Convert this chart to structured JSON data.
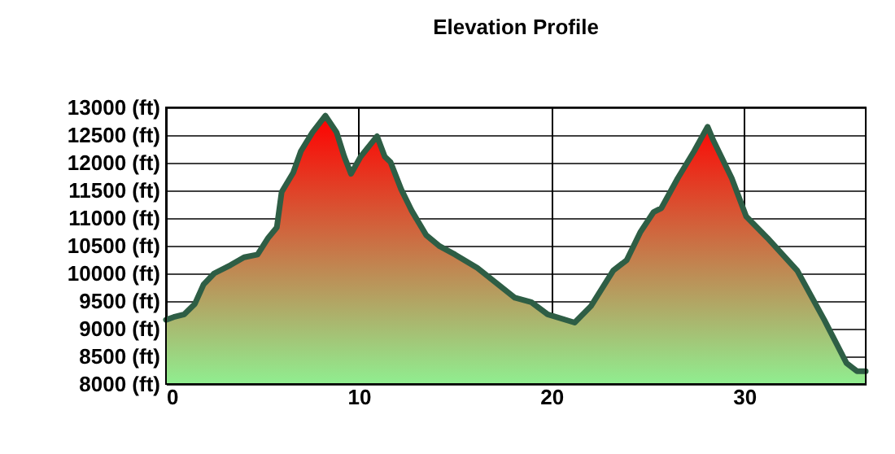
{
  "chart_data": {
    "type": "area",
    "title": "Elevation Profile",
    "x": [
      0,
      0.4,
      0.95,
      1.5,
      1.95,
      2.5,
      3.35,
      4.05,
      4.75,
      5.3,
      5.75,
      6.0,
      6.6,
      7.0,
      7.6,
      8.27,
      8.85,
      9.25,
      9.6,
      10.1,
      10.95,
      11.35,
      11.65,
      12.2,
      12.75,
      13.5,
      14.2,
      15.0,
      16.15,
      18.1,
      18.95,
      19.8,
      21.2,
      22.05,
      23.2,
      23.9,
      24.6,
      25.3,
      25.7,
      26.55,
      27.4,
      28.1,
      28.4,
      29.35,
      30.1,
      31.2,
      32.75,
      34.15,
      35.3,
      35.85,
      36.3
    ],
    "series": [
      {
        "color": "#2e5e45",
        "values": [
          9160,
          9210,
          9260,
          9450,
          9800,
          10000,
          10150,
          10290,
          10340,
          10640,
          10830,
          11470,
          11820,
          12210,
          12550,
          12850,
          12550,
          12110,
          11800,
          12110,
          12480,
          12110,
          12010,
          11520,
          11130,
          10690,
          10490,
          10340,
          10100,
          9560,
          9480,
          9260,
          9110,
          9410,
          10050,
          10240,
          10740,
          11110,
          11180,
          11720,
          12210,
          12650,
          12400,
          11720,
          11030,
          10640,
          10050,
          9160,
          8380,
          8230,
          8230
        ]
      }
    ],
    "xlim": [
      0,
      36.3
    ],
    "xticks": [
      0,
      10,
      20,
      30
    ],
    "ylim": [
      8000,
      13000
    ],
    "yticks": [
      {
        "value": 8000,
        "label": "8000 (ft)"
      },
      {
        "value": 8500,
        "label": "8500 (ft)"
      },
      {
        "value": 9000,
        "label": "9000 (ft)"
      },
      {
        "value": 9500,
        "label": "9500 (ft)"
      },
      {
        "value": 10000,
        "label": "10000 (ft)"
      },
      {
        "value": 10500,
        "label": "10500 (ft)"
      },
      {
        "value": 11000,
        "label": "11000 (ft)"
      },
      {
        "value": 11500,
        "label": "11500 (ft)"
      },
      {
        "value": 12000,
        "label": "12000 (ft)"
      },
      {
        "value": 12500,
        "label": "12500 (ft)"
      },
      {
        "value": 13000,
        "label": "13000 (ft)"
      }
    ],
    "grid": true
  }
}
